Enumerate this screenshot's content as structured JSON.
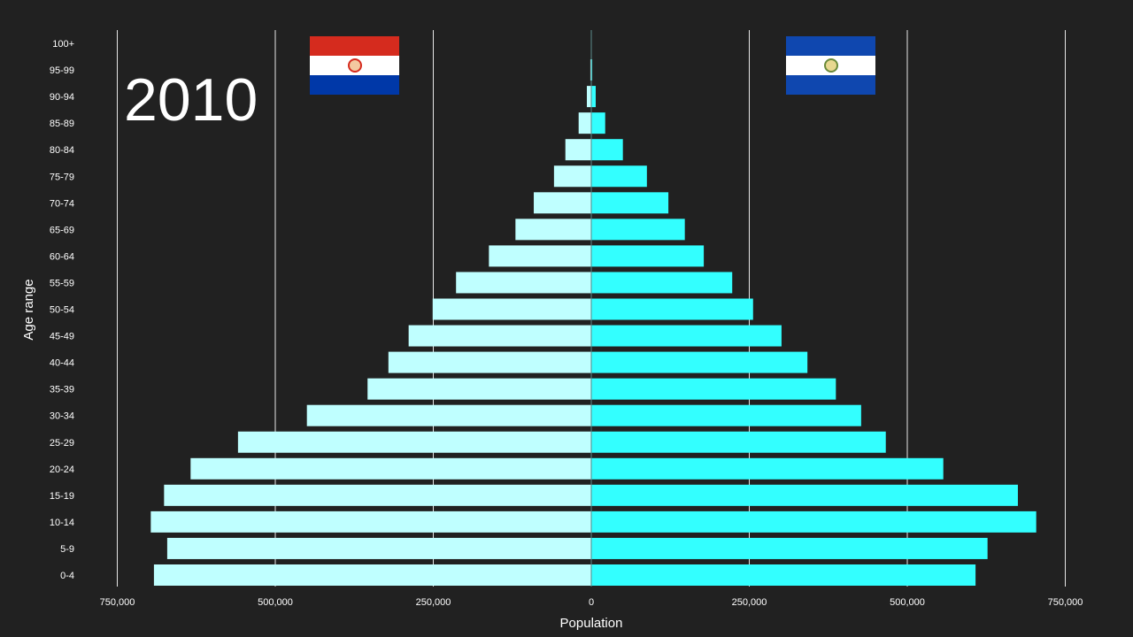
{
  "year_label": "2010",
  "flags": {
    "left": "paraguay-flag",
    "right": "el-salvador-flag"
  },
  "colors": {
    "background": "#212121",
    "left_bars": "#bfffff",
    "right_bars": "#33ffff",
    "grid": "#e6e6e6"
  },
  "chart_data": {
    "type": "bar",
    "orientation": "horizontal-pyramid",
    "xlabel": "Population",
    "ylabel": "Age range",
    "xlim": [
      -750000,
      750000
    ],
    "x_ticks": [
      -750000,
      -500000,
      -250000,
      0,
      250000,
      500000,
      750000
    ],
    "x_tick_labels": [
      "750,000",
      "500,000",
      "250,000",
      "0",
      "250,000",
      "500,000",
      "750,000"
    ],
    "grid": true,
    "categories": [
      "0-4",
      "5-9",
      "10-14",
      "15-19",
      "20-24",
      "25-29",
      "30-34",
      "35-39",
      "40-44",
      "45-49",
      "50-54",
      "55-59",
      "60-64",
      "65-69",
      "70-74",
      "75-79",
      "80-84",
      "85-89",
      "90-94",
      "95-99",
      "100+"
    ],
    "series": [
      {
        "side": "left",
        "values": [
          692000,
          671000,
          697000,
          676000,
          634000,
          559000,
          450000,
          354000,
          321000,
          289000,
          251000,
          214000,
          162000,
          120000,
          91000,
          59000,
          41000,
          20000,
          7000,
          1500,
          300
        ]
      },
      {
        "side": "right",
        "values": [
          608000,
          627000,
          704000,
          675000,
          557000,
          466000,
          427000,
          387000,
          342000,
          301000,
          256000,
          223000,
          178000,
          148000,
          122000,
          88000,
          50000,
          22000,
          7000,
          1500,
          300
        ]
      }
    ]
  }
}
